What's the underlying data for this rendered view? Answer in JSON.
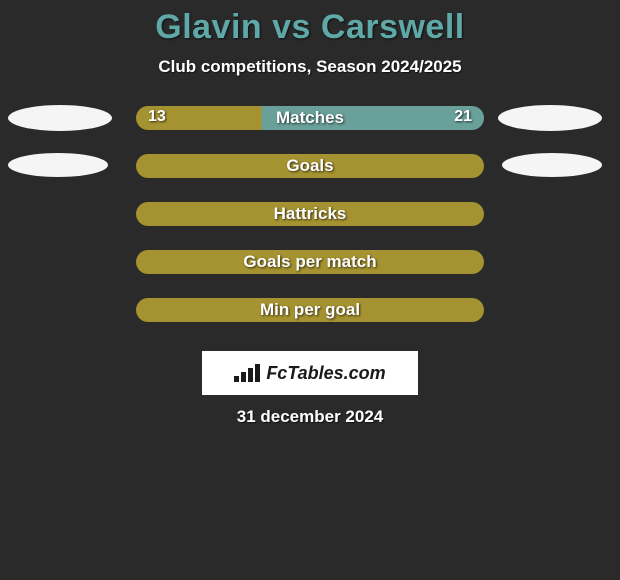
{
  "title": "Glavin vs Carswell",
  "subtitle": "Club competitions, Season 2024/2025",
  "colors": {
    "page_bg": "#2a2a2a",
    "title": "#5fa8a8",
    "text": "#ffffff",
    "bar_left": "#a59230",
    "bar_right": "#6aa09a",
    "badge_bg": "#ffffff",
    "badge_text": "#1a1a1a",
    "ellipse": "#f5f5f5"
  },
  "rows": [
    {
      "label": "Matches",
      "left_value": "13",
      "right_value": "21",
      "split_pct": 36,
      "ellipse": {
        "show_left": true,
        "show_right": true,
        "lw": 104,
        "lh": 26,
        "rw": 104,
        "rh": 26,
        "ltop": 0,
        "rtop": 0
      }
    },
    {
      "label": "Goals",
      "left_value": "",
      "right_value": "",
      "split_pct": 100,
      "ellipse": {
        "show_left": true,
        "show_right": true,
        "lw": 100,
        "lh": 24,
        "rw": 100,
        "rh": 24,
        "ltop": 0,
        "rtop": 0
      }
    },
    {
      "label": "Hattricks",
      "left_value": "",
      "right_value": "",
      "split_pct": 100,
      "ellipse": {
        "show_left": false,
        "show_right": false
      }
    },
    {
      "label": "Goals per match",
      "left_value": "",
      "right_value": "",
      "split_pct": 100,
      "ellipse": {
        "show_left": false,
        "show_right": false
      }
    },
    {
      "label": "Min per goal",
      "left_value": "",
      "right_value": "",
      "split_pct": 100,
      "ellipse": {
        "show_left": false,
        "show_right": false
      }
    }
  ],
  "footer": {
    "brand": "FcTables.com",
    "date": "31 december 2024"
  }
}
